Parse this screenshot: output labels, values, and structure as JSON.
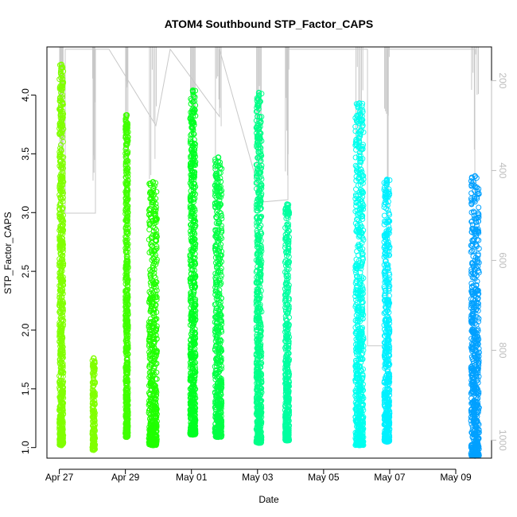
{
  "chart_data": {
    "type": "scatter",
    "title": "ATOM4 Southbound STP_Factor_CAPS",
    "xlabel": "Date",
    "ylabel": "STP_Factor_CAPS",
    "x_tick_labels": [
      "Apr 27",
      "Apr 29",
      "May 01",
      "May 03",
      "May 05",
      "May 07",
      "May 09"
    ],
    "x_tick_dates": [
      "2023-04-27",
      "2023-04-29",
      "2023-05-01",
      "2023-05-03",
      "2023-05-05",
      "2023-05-07",
      "2023-05-09"
    ],
    "y_ticks": [
      1.0,
      1.5,
      2.0,
      2.5,
      3.0,
      3.5,
      4.0
    ],
    "y_tick_labels": [
      "1.0",
      "1.5",
      "2.0",
      "2.5",
      "3.0",
      "3.5",
      "4.0"
    ],
    "ylim": [
      0.91,
      4.41
    ],
    "y2_ticks": [
      200,
      400,
      600,
      800,
      1000
    ],
    "y2_tick_labels": [
      "200",
      "400",
      "600",
      "800",
      "1000"
    ],
    "y2lim": [
      1040,
      125
    ],
    "y2_axis_color": "#bdbdbd",
    "xlim": [
      "2023-04-26 15:00",
      "2023-05-10 02:00"
    ],
    "series": [
      {
        "start": "2023-04-27 00:00",
        "end": "2023-04-27 03:00",
        "ymin": 1.02,
        "ymax": 4.26,
        "color": "#80ff00"
      },
      {
        "start": "2023-04-28 00:00",
        "end": "2023-04-28 02:00",
        "ymin": 0.98,
        "ymax": 1.76,
        "color": "#80ff00"
      },
      {
        "start": "2023-04-29 00:00",
        "end": "2023-04-29 02:00",
        "ymin": 1.09,
        "ymax": 3.83,
        "color": "#40ff00"
      },
      {
        "start": "2023-04-29 17:00",
        "end": "2023-04-29 23:00",
        "ymin": 1.02,
        "ymax": 3.26,
        "color": "#20ff00"
      },
      {
        "start": "2023-04-30 23:00",
        "end": "2023-05-01 03:00",
        "ymin": 1.11,
        "ymax": 4.04,
        "color": "#00ff22"
      },
      {
        "start": "2023-05-01 17:00",
        "end": "2023-05-01 22:00",
        "ymin": 1.09,
        "ymax": 3.47,
        "color": "#00ff44"
      },
      {
        "start": "2023-05-02 23:00",
        "end": "2023-05-03 03:00",
        "ymin": 1.04,
        "ymax": 4.02,
        "color": "#00ff88"
      },
      {
        "start": "2023-05-03 20:00",
        "end": "2023-05-03 23:00",
        "ymin": 1.06,
        "ymax": 3.07,
        "color": "#00ffa0"
      },
      {
        "start": "2023-05-05 23:00",
        "end": "2023-05-06 05:00",
        "ymin": 1.02,
        "ymax": 3.93,
        "color": "#00ffee"
      },
      {
        "start": "2023-05-06 20:00",
        "end": "2023-05-07 00:00",
        "ymin": 1.05,
        "ymax": 3.28,
        "color": "#00f0ff"
      },
      {
        "start": "2023-05-09 11:00",
        "end": "2023-05-09 17:00",
        "ymin": 0.93,
        "ymax": 3.31,
        "color": "#00a0ff"
      }
    ],
    "grey_line_color": "#c8c8c8",
    "grey_line_count_y2": [
      130,
      495,
      495,
      130,
      130,
      300,
      300,
      130,
      130,
      465,
      465,
      130,
      130,
      475,
      470,
      130,
      130,
      790,
      790,
      130,
      130,
      430,
      130
    ]
  }
}
